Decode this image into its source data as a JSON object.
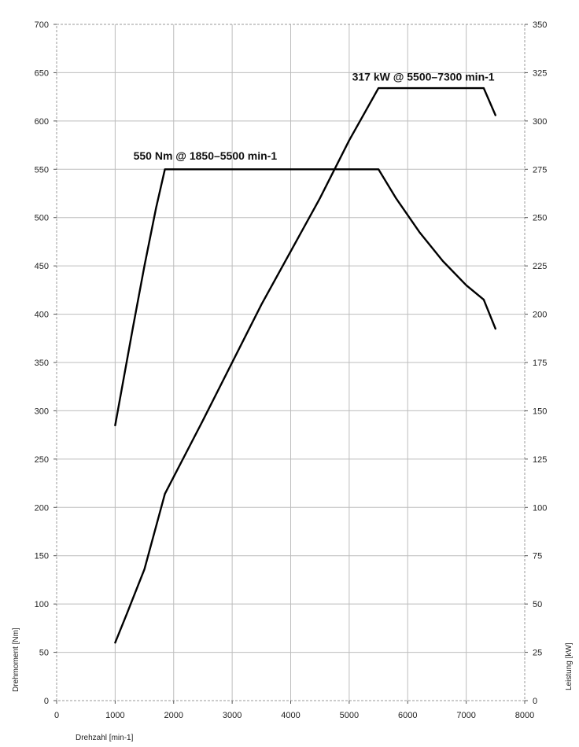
{
  "chart_data": {
    "type": "line",
    "title": "",
    "xlabel": "Drehzahl [min-1]",
    "ylabel_left": "Drehmoment [Nm]",
    "ylabel_right": "Leistung [kW]",
    "xlim": [
      0,
      8000
    ],
    "ylim_left": [
      0,
      700
    ],
    "ylim_right": [
      0,
      350
    ],
    "x_ticks": [
      "0",
      "1000",
      "2000",
      "3000",
      "4000",
      "5000",
      "6000",
      "7000",
      "8000"
    ],
    "y_left_ticks": [
      "0",
      "50",
      "100",
      "150",
      "200",
      "250",
      "300",
      "350",
      "400",
      "450",
      "500",
      "550",
      "600",
      "650",
      "700"
    ],
    "y_right_ticks": [
      "0",
      "25",
      "50",
      "75",
      "100",
      "125",
      "150",
      "175",
      "200",
      "225",
      "250",
      "275",
      "300",
      "325",
      "350"
    ],
    "grid": true,
    "series": [
      {
        "axis": "left",
        "x": [
          1000,
          1300,
          1500,
          1700,
          1850,
          5500,
          5800,
          6200,
          6600,
          7000,
          7300,
          7500
        ],
        "y": [
          285,
          385,
          450,
          510,
          550,
          550,
          520,
          485,
          455,
          430,
          415,
          385
        ]
      },
      {
        "axis": "right",
        "x": [
          1000,
          1200,
          1500,
          1850,
          2500,
          3500,
          4500,
          5000,
          5500,
          6000,
          6500,
          7000,
          7300,
          7500
        ],
        "y": [
          30,
          45,
          68,
          107,
          145,
          205,
          260,
          290,
          317,
          317,
          317,
          317,
          317,
          303
        ]
      }
    ],
    "annotations": [
      {
        "text": "550 Nm @ 1850–5500 min-1",
        "x": 1850,
        "y": 560,
        "axis": "left"
      },
      {
        "text": "317 kW @ 5500–7300 min-1",
        "x": 5050,
        "y": 642,
        "axis": "left"
      }
    ]
  }
}
